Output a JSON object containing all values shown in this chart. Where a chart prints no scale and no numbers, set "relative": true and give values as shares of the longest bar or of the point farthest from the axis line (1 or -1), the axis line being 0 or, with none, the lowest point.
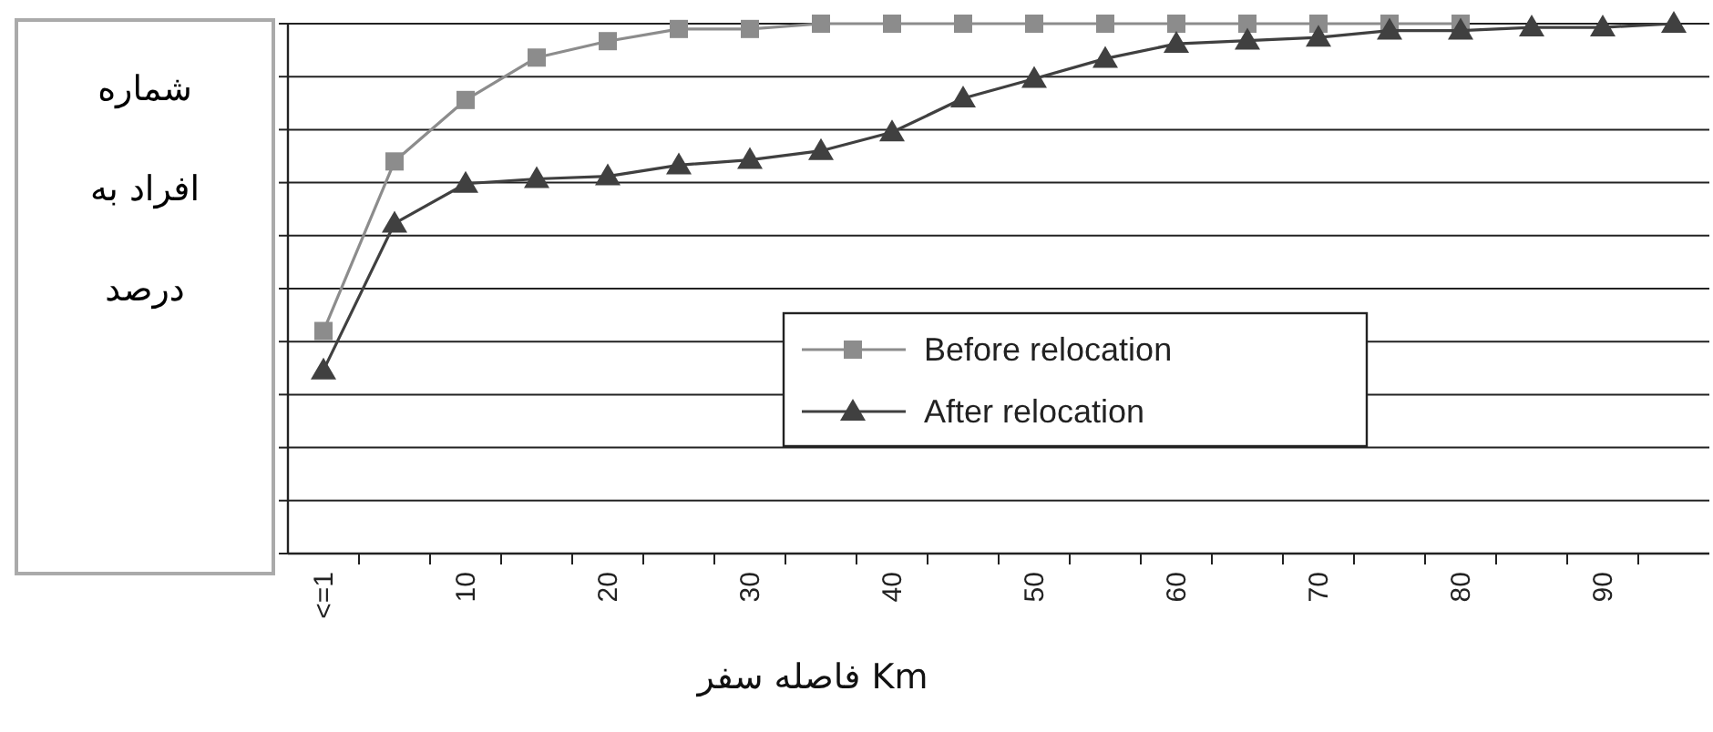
{
  "chart_data": {
    "type": "line",
    "relative": true,
    "xlabel": "فاصله سفر Km",
    "ylabel": "شماره افراد به درصد",
    "categories": [
      "<=1",
      null,
      "10",
      null,
      "20",
      null,
      "30",
      null,
      "40",
      null,
      "50",
      null,
      "60",
      null,
      "70",
      null,
      "80",
      null,
      "90",
      null
    ],
    "series": [
      {
        "name": "Before relocation",
        "color": "#8c8c8c",
        "marker": "square",
        "values": [
          0.42,
          0.74,
          0.856,
          0.936,
          0.967,
          0.99,
          0.99,
          1.0,
          1.0,
          1.0,
          1.0,
          1.0,
          1.0,
          1.0,
          1.0,
          1.0,
          1.0,
          null,
          null,
          null
        ]
      },
      {
        "name": "After relocation",
        "color": "#404040",
        "marker": "triangle",
        "values": [
          0.346,
          0.623,
          0.698,
          0.707,
          0.712,
          0.733,
          0.743,
          0.76,
          0.795,
          0.859,
          0.896,
          0.934,
          0.962,
          0.968,
          0.974,
          0.987,
          0.987,
          0.993,
          0.993,
          1.0
        ]
      }
    ],
    "grid": "y",
    "legend": "bottom"
  }
}
